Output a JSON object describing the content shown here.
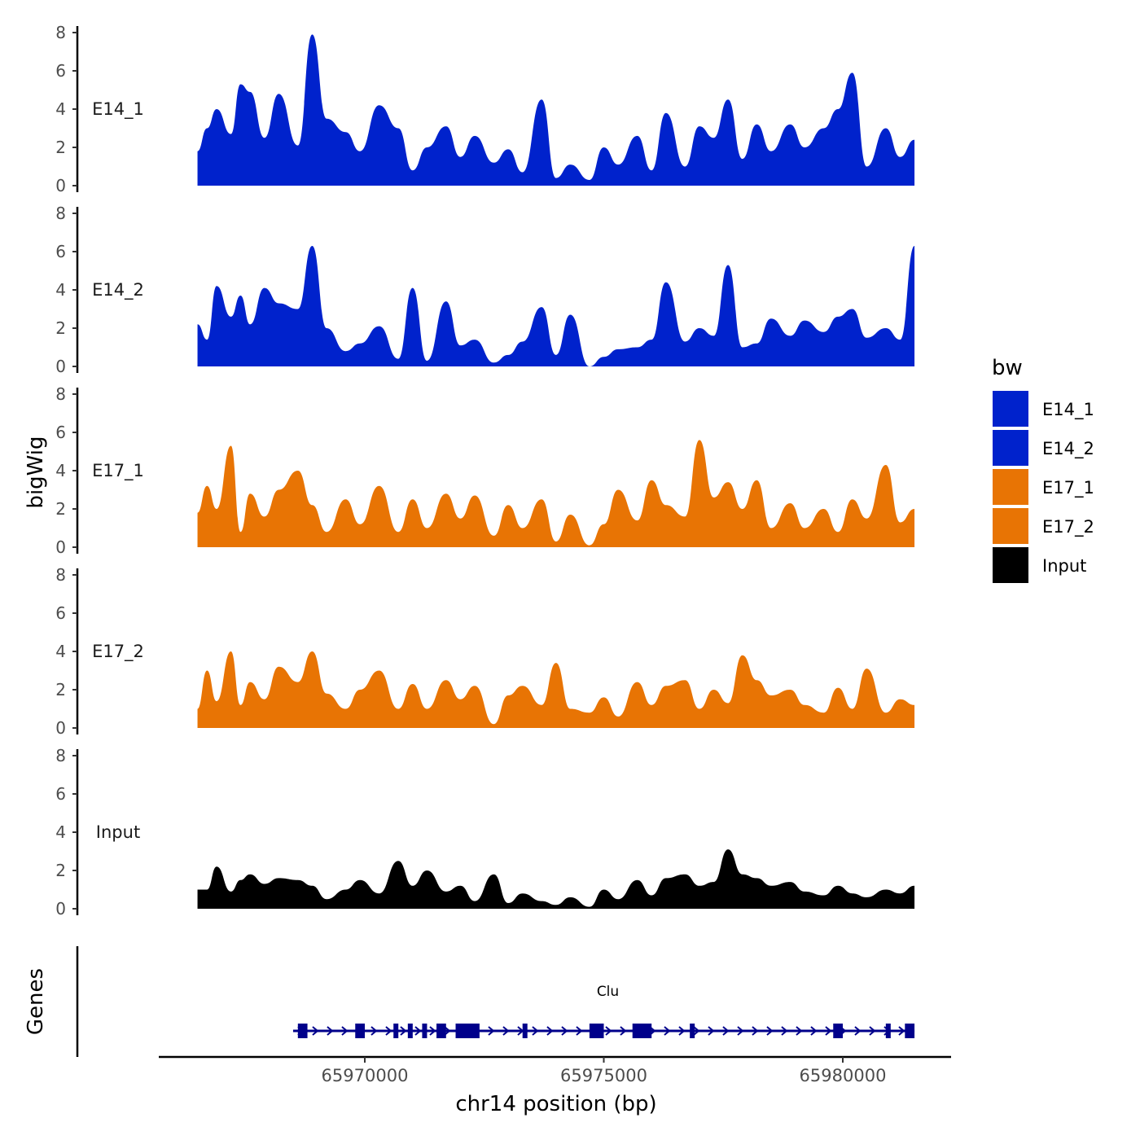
{
  "chart_data": {
    "type": "area",
    "y_axis_title": "bigWig",
    "genes_axis_title": "Genes",
    "xlabel": "chr14 position (bp)",
    "xlim": [
      65966000,
      65982000
    ],
    "x_ticks": [
      65970000,
      65975000,
      65980000
    ],
    "x_tick_labels": [
      "65970000",
      "65975000",
      "65980000"
    ],
    "ylim": [
      0,
      8
    ],
    "y_ticks": [
      0,
      2,
      4,
      6,
      8
    ],
    "y_tick_labels": [
      "0",
      "2",
      "4",
      "6",
      "8"
    ],
    "legend": {
      "title": "bw",
      "position": "right",
      "entries": [
        {
          "label": "E14_1",
          "color": "#0022CC"
        },
        {
          "label": "E14_2",
          "color": "#0022CC"
        },
        {
          "label": "E17_1",
          "color": "#E87404"
        },
        {
          "label": "E17_2",
          "color": "#E87404"
        },
        {
          "label": "Input",
          "color": "#000000"
        }
      ]
    },
    "series": [
      {
        "name": "E14_1",
        "color": "#0022CC",
        "x": [
          65966500,
          65966700,
          65966900,
          65967200,
          65967400,
          65967600,
          65967900,
          65968200,
          65968600,
          65968900,
          65969200,
          65969600,
          65969900,
          65970300,
          65970700,
          65971000,
          65971300,
          65971700,
          65972000,
          65972300,
          65972700,
          65973000,
          65973300,
          65973700,
          65974000,
          65974300,
          65974700,
          65975000,
          65975300,
          65975700,
          65976000,
          65976300,
          65976700,
          65977000,
          65977300,
          65977600,
          65977900,
          65978200,
          65978500,
          65978900,
          65979200,
          65979600,
          65979900,
          65980200,
          65980500,
          65980900,
          65981200,
          65981500
        ],
        "y": [
          1.8,
          3.0,
          4.0,
          2.7,
          5.3,
          4.9,
          2.5,
          4.8,
          2.1,
          7.9,
          3.5,
          2.8,
          1.8,
          4.2,
          3.0,
          0.8,
          2.0,
          3.1,
          1.5,
          2.6,
          1.2,
          1.9,
          0.7,
          4.5,
          0.4,
          1.1,
          0.3,
          2.0,
          1.1,
          2.6,
          0.8,
          3.8,
          1.0,
          3.1,
          2.5,
          4.5,
          1.4,
          3.2,
          1.8,
          3.2,
          2.0,
          3.0,
          4.0,
          5.9,
          1.0,
          3.0,
          1.5,
          2.4
        ]
      },
      {
        "name": "E14_2",
        "color": "#0022CC",
        "x": [
          65966500,
          65966700,
          65966900,
          65967200,
          65967400,
          65967600,
          65967900,
          65968200,
          65968600,
          65968900,
          65969200,
          65969600,
          65969900,
          65970300,
          65970700,
          65971000,
          65971300,
          65971700,
          65972000,
          65972300,
          65972700,
          65973000,
          65973300,
          65973700,
          65974000,
          65974300,
          65974700,
          65975000,
          65975300,
          65975700,
          65976000,
          65976300,
          65976700,
          65977000,
          65977300,
          65977600,
          65977900,
          65978200,
          65978500,
          65978900,
          65979200,
          65979600,
          65979900,
          65980200,
          65980500,
          65980900,
          65981200,
          65981500
        ],
        "y": [
          2.2,
          1.4,
          4.2,
          2.6,
          3.7,
          2.2,
          4.1,
          3.3,
          3.0,
          6.3,
          2.0,
          0.8,
          1.2,
          2.1,
          0.4,
          4.1,
          0.3,
          3.4,
          1.1,
          1.4,
          0.2,
          0.6,
          1.3,
          3.1,
          0.6,
          2.7,
          0.0,
          0.5,
          0.9,
          1.0,
          1.4,
          4.4,
          1.3,
          2.0,
          1.6,
          5.3,
          1.0,
          1.2,
          2.5,
          1.6,
          2.4,
          1.8,
          2.6,
          3.0,
          1.5,
          2.0,
          1.4,
          6.3
        ]
      },
      {
        "name": "E17_1",
        "color": "#E87404",
        "x": [
          65966500,
          65966700,
          65966900,
          65967200,
          65967400,
          65967600,
          65967900,
          65968200,
          65968600,
          65968900,
          65969200,
          65969600,
          65969900,
          65970300,
          65970700,
          65971000,
          65971300,
          65971700,
          65972000,
          65972300,
          65972700,
          65973000,
          65973300,
          65973700,
          65974000,
          65974300,
          65974700,
          65975000,
          65975300,
          65975700,
          65976000,
          65976300,
          65976700,
          65977000,
          65977300,
          65977600,
          65977900,
          65978200,
          65978500,
          65978900,
          65979200,
          65979600,
          65979900,
          65980200,
          65980500,
          65980900,
          65981200,
          65981500
        ],
        "y": [
          1.8,
          3.2,
          2.0,
          5.3,
          0.8,
          2.8,
          1.6,
          3.0,
          4.0,
          2.2,
          0.8,
          2.5,
          1.2,
          3.2,
          0.8,
          2.5,
          1.0,
          2.8,
          1.5,
          2.7,
          0.6,
          2.2,
          1.0,
          2.5,
          0.3,
          1.7,
          0.1,
          1.2,
          3.0,
          1.4,
          3.5,
          2.2,
          1.6,
          5.6,
          2.6,
          3.4,
          2.0,
          3.5,
          1.0,
          2.3,
          1.0,
          2.0,
          0.8,
          2.5,
          1.5,
          4.3,
          1.3,
          2.0
        ]
      },
      {
        "name": "E17_2",
        "color": "#E87404",
        "x": [
          65966500,
          65966700,
          65966900,
          65967200,
          65967400,
          65967600,
          65967900,
          65968200,
          65968600,
          65968900,
          65969200,
          65969600,
          65969900,
          65970300,
          65970700,
          65971000,
          65971300,
          65971700,
          65972000,
          65972300,
          65972700,
          65973000,
          65973300,
          65973700,
          65974000,
          65974300,
          65974700,
          65975000,
          65975300,
          65975700,
          65976000,
          65976300,
          65976700,
          65977000,
          65977300,
          65977600,
          65977900,
          65978200,
          65978500,
          65978900,
          65979200,
          65979600,
          65979900,
          65980200,
          65980500,
          65980900,
          65981200,
          65981500
        ],
        "y": [
          1.0,
          3.0,
          1.4,
          4.0,
          1.2,
          2.4,
          1.5,
          3.2,
          2.4,
          4.0,
          1.8,
          1.0,
          2.0,
          3.0,
          1.0,
          2.3,
          1.0,
          2.5,
          1.5,
          2.2,
          0.2,
          1.7,
          2.2,
          1.2,
          3.4,
          1.0,
          0.8,
          1.6,
          0.6,
          2.4,
          1.2,
          2.2,
          2.5,
          1.0,
          2.0,
          1.3,
          3.8,
          2.5,
          1.7,
          2.0,
          1.2,
          0.8,
          2.1,
          1.0,
          3.1,
          0.8,
          1.5,
          1.2
        ]
      },
      {
        "name": "Input",
        "color": "#000000",
        "x": [
          65966500,
          65966700,
          65966900,
          65967200,
          65967400,
          65967600,
          65967900,
          65968200,
          65968600,
          65968900,
          65969200,
          65969600,
          65969900,
          65970300,
          65970700,
          65971000,
          65971300,
          65971700,
          65972000,
          65972300,
          65972700,
          65973000,
          65973300,
          65973700,
          65974000,
          65974300,
          65974700,
          65975000,
          65975300,
          65975700,
          65976000,
          65976300,
          65976700,
          65977000,
          65977300,
          65977600,
          65977900,
          65978200,
          65978500,
          65978900,
          65979200,
          65979600,
          65979900,
          65980200,
          65980500,
          65980900,
          65981200,
          65981500
        ],
        "y": [
          1.0,
          1.0,
          2.2,
          0.9,
          1.5,
          1.8,
          1.3,
          1.6,
          1.5,
          1.2,
          0.5,
          1.0,
          1.5,
          0.8,
          2.5,
          1.2,
          2.0,
          0.9,
          1.2,
          0.4,
          1.8,
          0.3,
          0.8,
          0.4,
          0.2,
          0.6,
          0.1,
          1.0,
          0.5,
          1.5,
          0.7,
          1.6,
          1.8,
          1.2,
          1.4,
          3.1,
          1.8,
          1.6,
          1.2,
          1.4,
          0.9,
          0.7,
          1.2,
          0.8,
          0.6,
          1.0,
          0.8,
          1.2
        ]
      }
    ],
    "gene": {
      "name": "Clu",
      "color": "#00008B",
      "start": 65968500,
      "end": 65981500,
      "strand": "+",
      "exons": [
        [
          65968600,
          65968800
        ],
        [
          65969800,
          65970000
        ],
        [
          65970600,
          65970700
        ],
        [
          65970900,
          65971000
        ],
        [
          65971200,
          65971300
        ],
        [
          65971500,
          65971700
        ],
        [
          65971900,
          65972400
        ],
        [
          65973300,
          65973400
        ],
        [
          65974700,
          65975000
        ],
        [
          65975600,
          65976000
        ],
        [
          65976800,
          65976900
        ],
        [
          65979800,
          65980000
        ],
        [
          65980900,
          65981000
        ],
        [
          65981300,
          65981500
        ]
      ]
    }
  }
}
